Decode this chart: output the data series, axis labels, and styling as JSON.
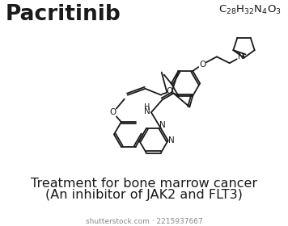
{
  "title": "Pacritinib",
  "formula_text": "C₂₈H₃₂N₄O₃",
  "subtitle_line1": "Treatment for bone marrow cancer",
  "subtitle_line2": "(An inhibitor of JAK2 and FLT3)",
  "watermark": "shutterstock.com · 2215937667",
  "bg_color": "#ffffff",
  "line_color": "#1a1a1a",
  "lw": 1.3
}
